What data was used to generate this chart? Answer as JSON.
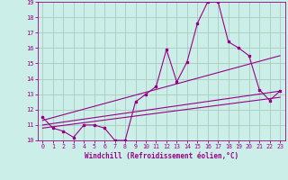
{
  "xlabel": "Windchill (Refroidissement éolien,°C)",
  "bg_color": "#cceee8",
  "grid_color": "#aaccbb",
  "line_color": "#990088",
  "xlim": [
    -0.5,
    23.5
  ],
  "ylim": [
    10,
    19
  ],
  "xticks": [
    0,
    1,
    2,
    3,
    4,
    5,
    6,
    7,
    8,
    9,
    10,
    11,
    12,
    13,
    14,
    15,
    16,
    17,
    18,
    19,
    20,
    21,
    22,
    23
  ],
  "yticks": [
    10,
    11,
    12,
    13,
    14,
    15,
    16,
    17,
    18,
    19
  ],
  "main_x": [
    0,
    1,
    2,
    3,
    4,
    5,
    6,
    7,
    8,
    9,
    10,
    11,
    12,
    13,
    14,
    15,
    16,
    17,
    18,
    19,
    20,
    21,
    22,
    23
  ],
  "main_y": [
    11.5,
    10.8,
    10.6,
    10.2,
    11.0,
    11.0,
    10.8,
    10.0,
    10.0,
    12.5,
    13.0,
    13.5,
    15.9,
    13.8,
    15.1,
    17.6,
    19.0,
    19.0,
    16.4,
    16.0,
    15.5,
    13.3,
    12.6,
    13.2
  ],
  "trend1_x": [
    0,
    23
  ],
  "trend1_y": [
    11.3,
    15.5
  ],
  "trend2_x": [
    0,
    23
  ],
  "trend2_y": [
    11.0,
    13.2
  ],
  "trend3_x": [
    0,
    23
  ],
  "trend3_y": [
    10.8,
    12.8
  ]
}
